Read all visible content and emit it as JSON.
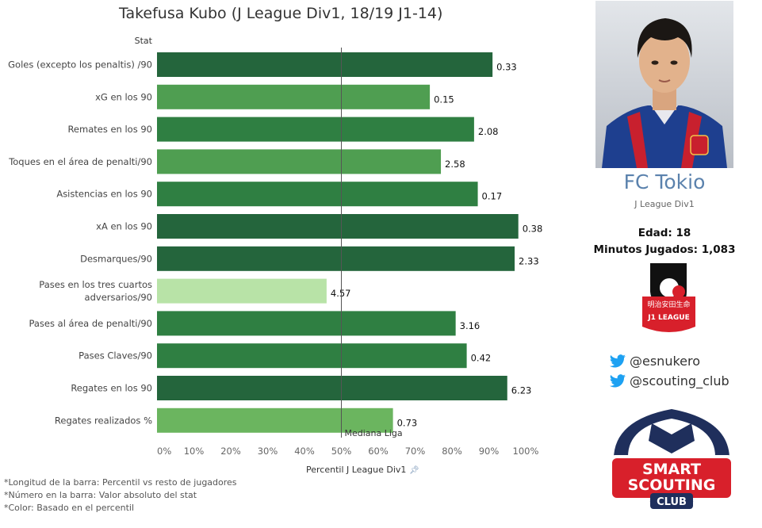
{
  "title": "Takefusa Kubo (J League Div1, 18/19 J1-14)",
  "stat_header": "Stat",
  "chart_data": {
    "type": "bar",
    "orientation": "horizontal",
    "categories": [
      [
        "Goles (excepto los penaltis) /90"
      ],
      [
        "xG en los 90"
      ],
      [
        "Remates en los 90"
      ],
      [
        "Toques en el área de penalti/90"
      ],
      [
        "Asistencias en los 90"
      ],
      [
        "xA en los 90"
      ],
      [
        "Desmarques/90"
      ],
      [
        "Pases en los tres cuartos",
        "adversarios/90"
      ],
      [
        "Pases al área de penalti/90"
      ],
      [
        "Pases Claves/90"
      ],
      [
        "Regates en los 90"
      ],
      [
        "Regates realizados %"
      ]
    ],
    "percentiles": [
      91,
      74,
      86,
      77,
      87,
      98,
      97,
      46,
      81,
      84,
      95,
      64
    ],
    "value_labels": [
      "0.33",
      "0.15",
      "2.08",
      "2.58",
      "0.17",
      "0.38",
      "2.33",
      "4.57",
      "3.16",
      "0.42",
      "6.23",
      "0.73"
    ],
    "bar_colors": [
      "#24653c",
      "#4f9e51",
      "#2f7f42",
      "#4f9e51",
      "#2f7f42",
      "#24653c",
      "#24653c",
      "#b8e3a7",
      "#2f7f42",
      "#2f7f42",
      "#24653c",
      "#6bb55f"
    ],
    "xlim": [
      0,
      100
    ],
    "xticks": [
      "0%",
      "10%",
      "20%",
      "30%",
      "40%",
      "50%",
      "60%",
      "70%",
      "80%",
      "90%",
      "100%"
    ],
    "xlabel": "Percentil J League Div1",
    "median": 50,
    "median_label": "Mediana Liga"
  },
  "footnotes": [
    "*Longitud de la barra: Percentil vs resto de jugadores",
    "*Número en la barra: Valor absoluto del stat",
    "*Color: Basado en el percentil"
  ],
  "profile": {
    "club": "FC Tokio",
    "league": "J League Div1",
    "age": "Edad: 18",
    "minutes": "Minutos Jugados: 1,083",
    "jleague_logo_text": "明治安田生命",
    "jleague_logo_sub": "J1 LEAGUE",
    "twitter": [
      "@esnukero",
      "@scouting_club"
    ],
    "brand_logo": [
      "SMART",
      "SCOUTING",
      "CLUB"
    ]
  },
  "colors": {
    "club_blue": "#5b82ad",
    "twitter_blue": "#1da1f2",
    "brand_navy": "#1f2f5c",
    "brand_red": "#d8202b"
  }
}
